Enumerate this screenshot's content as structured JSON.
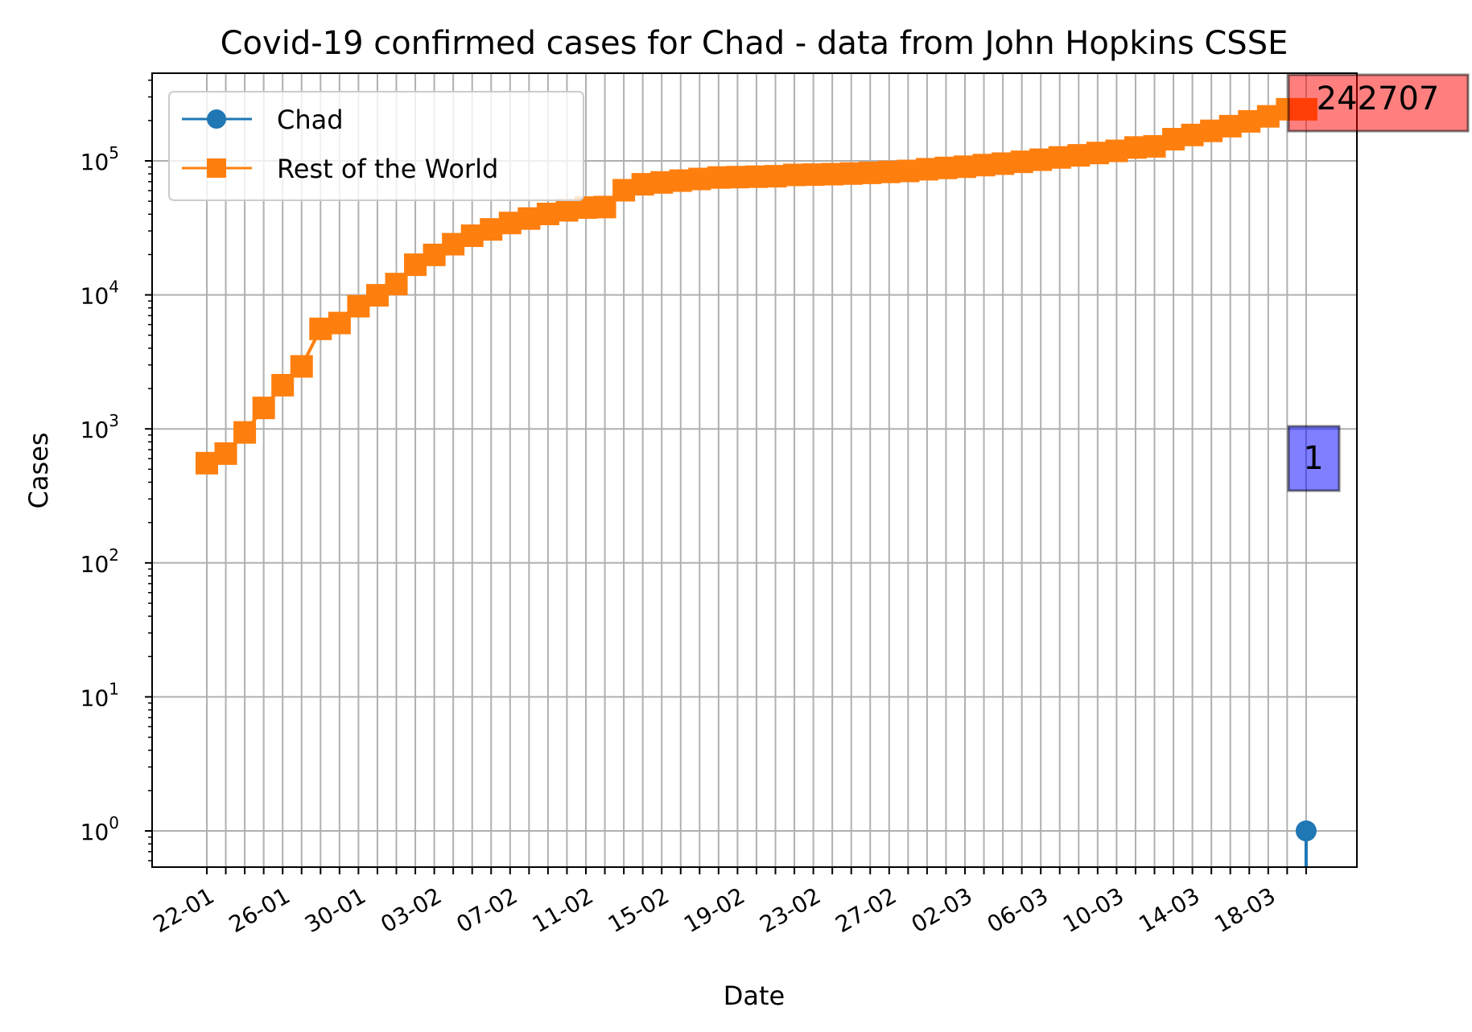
{
  "chart_data": {
    "type": "line",
    "title": "Covid-19 confirmed cases for Chad - data from John Hopkins CSSE",
    "xlabel": "Date",
    "ylabel": "Cases",
    "yscale": "log",
    "ylim": [
      0.55,
      450000
    ],
    "grid": true,
    "legend_position": "upper-left",
    "x_tick_labels": [
      "22-01",
      "26-01",
      "30-01",
      "03-02",
      "07-02",
      "11-02",
      "15-02",
      "19-02",
      "23-02",
      "27-02",
      "02-03",
      "06-03",
      "10-03",
      "14-03",
      "18-03"
    ],
    "y_ticks": [
      {
        "base": "10",
        "exp": "0"
      },
      {
        "base": "10",
        "exp": "1"
      },
      {
        "base": "10",
        "exp": "2"
      },
      {
        "base": "10",
        "exp": "3"
      },
      {
        "base": "10",
        "exp": "4"
      },
      {
        "base": "10",
        "exp": "5"
      }
    ],
    "series": [
      {
        "name": "Chad",
        "color": "#1f77b4",
        "marker": "circle",
        "values": [
          0,
          0,
          0,
          0,
          0,
          0,
          0,
          0,
          0,
          0,
          0,
          0,
          0,
          0,
          0,
          0,
          0,
          0,
          0,
          0,
          0,
          0,
          0,
          0,
          0,
          0,
          0,
          0,
          0,
          0,
          0,
          0,
          0,
          0,
          0,
          0,
          0,
          0,
          0,
          0,
          0,
          0,
          0,
          0,
          0,
          0,
          0,
          0,
          0,
          0,
          0,
          0,
          0,
          0,
          0,
          0,
          0,
          0,
          1
        ]
      },
      {
        "name": "Rest of the World",
        "color": "#ff7f0e",
        "marker": "square",
        "values": [
          555,
          654,
          941,
          1434,
          2118,
          2927,
          5578,
          6166,
          8234,
          9927,
          12038,
          16787,
          19881,
          23892,
          27635,
          30794,
          34391,
          37120,
          40150,
          42762,
          44802,
          45221,
          60368,
          66885,
          69030,
          71224,
          73258,
          75136,
          75639,
          76197,
          76819,
          78572,
          78958,
          79561,
          80406,
          81388,
          82746,
          84112,
          86604,
          88585,
          90443,
          93016,
          95314,
          98425,
          102050,
          106099,
          109991,
          114458,
          118760,
          125860,
          128343,
          145193,
          156097,
          167449,
          181531,
          197146,
          214910,
          242707,
          242707
        ]
      }
    ],
    "annotations": [
      {
        "text": "242707",
        "series": "Rest of the World",
        "box_color": "#ff0000"
      },
      {
        "text": "1",
        "series": "Chad",
        "box_color": "#0000ff"
      }
    ]
  }
}
